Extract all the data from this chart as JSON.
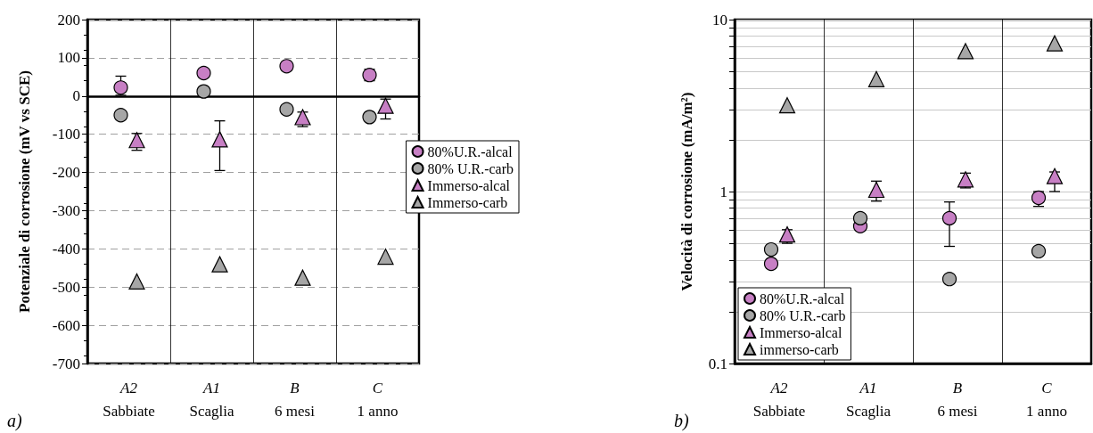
{
  "chart_data": [
    {
      "type": "scatter",
      "ylabel": "Potenziale di corrosione (mV vs SCE)",
      "categories": [
        "A2\nSabbiate",
        "A1\nScaglia",
        "B\n6 mesi",
        "C\n1 anno"
      ],
      "ylim": [
        -700,
        200
      ],
      "yticks": [
        -700,
        -600,
        -500,
        -400,
        -300,
        -200,
        -100,
        0,
        100,
        200
      ],
      "grid": true,
      "legend": "right",
      "annotations": [
        "a)"
      ],
      "series": [
        {
          "name": "80%U.R.-alcal",
          "color": "#c77fc4",
          "marker": "circle",
          "values": [
            22,
            60,
            78,
            55
          ],
          "errors": [
            [
              2,
              52
            ],
            null,
            null,
            [
              40,
              70
            ]
          ]
        },
        {
          "name": "80% U.R.-carb",
          "color": "#a6a6a6",
          "marker": "circle",
          "values": [
            -50,
            12,
            -35,
            -55
          ]
        },
        {
          "name": "Immerso-alcal",
          "color": "#c77fc4",
          "marker": "triangle",
          "values": [
            -120,
            -118,
            -60,
            -30
          ],
          "errors": [
            [
              -142,
              -98
            ],
            [
              -195,
              -65
            ],
            [
              -80,
              -42
            ],
            [
              -60,
              -8
            ]
          ]
        },
        {
          "name": "Immerso-carb",
          "color": "#a6a6a6",
          "marker": "triangle",
          "values": [
            -490,
            -445,
            -480,
            -425
          ]
        }
      ]
    },
    {
      "type": "scatter",
      "ylabel": "Velocità di corrosione (mA/m²)",
      "categories": [
        "A2\nSabbiate",
        "A1\nScaglia",
        "B\n6 mesi",
        "C\n1 anno"
      ],
      "log": "y",
      "ylim": [
        0.1,
        10
      ],
      "yticks": [
        0.1,
        {
          "value": 0.2,
          "label": null
        },
        {
          "value": 0.3,
          "label": null
        },
        {
          "value": 0.4,
          "label": null
        },
        {
          "value": 0.5,
          "label": null
        },
        {
          "value": 0.6,
          "label": null
        },
        {
          "value": 0.7,
          "label": null
        },
        {
          "value": 0.8,
          "label": null
        },
        {
          "value": 0.9,
          "label": null
        },
        1,
        {
          "value": 2,
          "label": null
        },
        {
          "value": 3,
          "label": null
        },
        {
          "value": 4,
          "label": null
        },
        {
          "value": 5,
          "label": null
        },
        {
          "value": 6,
          "label": null
        },
        {
          "value": 7,
          "label": null
        },
        {
          "value": 8,
          "label": null
        },
        {
          "value": 9,
          "label": null
        },
        10
      ],
      "grid": true,
      "legend": "bottom left",
      "annotations": [
        "b)"
      ],
      "series": [
        {
          "name": "80%U.R.-alcal",
          "color": "#c77fc4",
          "marker": "circle",
          "values": [
            0.38,
            0.63,
            0.7,
            0.92
          ],
          "errors": [
            null,
            null,
            [
              0.48,
              0.87
            ],
            [
              0.82,
              1.0
            ]
          ]
        },
        {
          "name": "80% U.R.-carb",
          "color": "#a6a6a6",
          "marker": "circle",
          "values": [
            0.46,
            0.7,
            0.31,
            0.45
          ]
        },
        {
          "name": "Immerso-alcal",
          "color": "#c77fc4",
          "marker": "triangle",
          "values": [
            0.55,
            1.0,
            1.15,
            1.2
          ],
          "errors": [
            [
              0.5,
              0.6
            ],
            [
              0.88,
              1.15
            ],
            [
              1.05,
              1.28
            ],
            [
              1.0,
              1.3
            ]
          ]
        },
        {
          "name": "immerso-carb",
          "color": "#a6a6a6",
          "marker": "triangle",
          "values": [
            3.1,
            4.4,
            6.4,
            7.1
          ]
        }
      ]
    }
  ]
}
